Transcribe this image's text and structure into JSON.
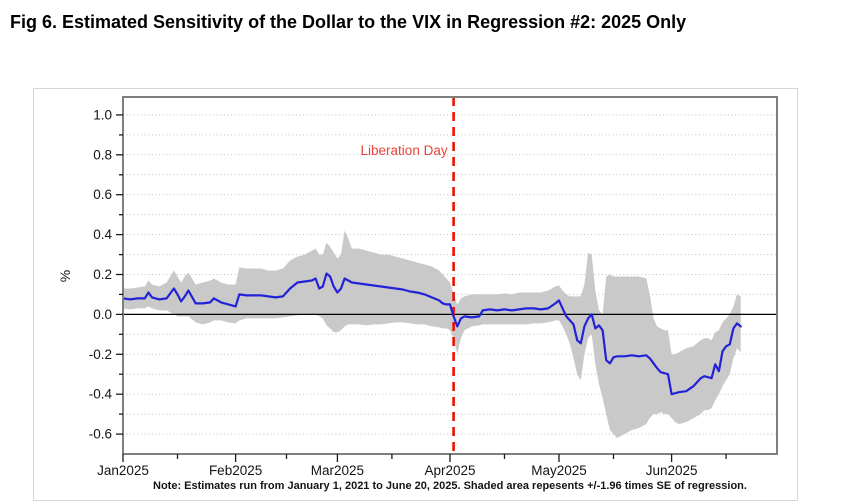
{
  "title": "Fig 6. Estimated Sensitivity of the Dollar to the VIX in Regression #2: 2025 Only",
  "note": "Note: Estimates run from January 1, 2021 to June 20, 2025. Shaded area repesents +/-1.96 times SE of regression.",
  "chart_data": {
    "type": "line",
    "title": "Fig 6. Estimated Sensitivity of the Dollar to the VIX in Regression #2: 2025 Only",
    "xlabel": "",
    "ylabel": "%",
    "x_domain": [
      "2025-01-01",
      "2025-06-30"
    ],
    "ylim": [
      -0.7,
      1.09
    ],
    "grid": {
      "from": -0.6,
      "to": 1.0,
      "step": 0.1
    },
    "y_ticks_major": [
      {
        "value": 1.0,
        "label": "1.0"
      },
      {
        "value": 0.8,
        "label": "0.8"
      },
      {
        "value": 0.6,
        "label": "0.6"
      },
      {
        "value": 0.4,
        "label": "0.4"
      },
      {
        "value": 0.2,
        "label": "0.2"
      },
      {
        "value": 0.0,
        "label": "0.0"
      },
      {
        "value": -0.2,
        "label": "-0.2"
      },
      {
        "value": -0.4,
        "label": "-0.4"
      },
      {
        "value": -0.6,
        "label": "-0.6"
      }
    ],
    "y_ticks_minor": [
      0.9,
      0.7,
      0.5,
      0.3,
      0.1,
      -0.1,
      -0.3,
      -0.5
    ],
    "x_ticks_major": [
      {
        "date": "2025-01-01",
        "label": "Jan2025"
      },
      {
        "date": "2025-02-01",
        "label": "Feb2025"
      },
      {
        "date": "2025-03-01",
        "label": "Mar2025"
      },
      {
        "date": "2025-04-01",
        "label": "Apr2025"
      },
      {
        "date": "2025-05-01",
        "label": "May2025"
      },
      {
        "date": "2025-06-01",
        "label": "Jun2025"
      }
    ],
    "x_ticks_minor": [
      "2025-01-16",
      "2025-02-15",
      "2025-03-16",
      "2025-04-16",
      "2025-05-16",
      "2025-06-16"
    ],
    "zero_line": 0.0,
    "annotation": {
      "label": "Liberation Day",
      "date": "2025-04-02",
      "line_color": "#ee1100",
      "text_color": "#e8423a"
    },
    "colors": {
      "estimate": "#2222d6",
      "band": "#c9c9c9",
      "grid": "#bfbfbf",
      "plot_border": "#7f7f7f",
      "axis_text": "#141414"
    },
    "legend": "none",
    "series_columns": [
      "date",
      "estimate",
      "lower",
      "upper"
    ],
    "series_rows": [
      [
        "2025-01-01",
        0.08,
        0.03,
        0.13
      ],
      [
        "2025-01-03",
        0.075,
        0.025,
        0.13
      ],
      [
        "2025-01-05",
        0.08,
        0.03,
        0.135
      ],
      [
        "2025-01-07",
        0.08,
        0.03,
        0.14
      ],
      [
        "2025-01-08",
        0.11,
        0.04,
        0.17
      ],
      [
        "2025-01-09",
        0.085,
        0.03,
        0.15
      ],
      [
        "2025-01-11",
        0.075,
        0.02,
        0.14
      ],
      [
        "2025-01-13",
        0.08,
        0.02,
        0.16
      ],
      [
        "2025-01-15",
        0.13,
        0.0,
        0.22
      ],
      [
        "2025-01-16",
        0.1,
        -0.01,
        0.19
      ],
      [
        "2025-01-17",
        0.065,
        -0.01,
        0.16
      ],
      [
        "2025-01-18",
        0.09,
        -0.01,
        0.19
      ],
      [
        "2025-01-19",
        0.12,
        -0.01,
        0.21
      ],
      [
        "2025-01-21",
        0.055,
        -0.04,
        0.15
      ],
      [
        "2025-01-23",
        0.055,
        -0.05,
        0.16
      ],
      [
        "2025-01-25",
        0.06,
        -0.04,
        0.17
      ],
      [
        "2025-01-26",
        0.08,
        -0.03,
        0.18
      ],
      [
        "2025-01-28",
        0.06,
        -0.03,
        0.16
      ],
      [
        "2025-01-30",
        0.05,
        -0.04,
        0.15
      ],
      [
        "2025-02-01",
        0.04,
        -0.045,
        0.15
      ],
      [
        "2025-02-02",
        0.1,
        -0.03,
        0.235
      ],
      [
        "2025-02-04",
        0.095,
        -0.02,
        0.23
      ],
      [
        "2025-02-06",
        0.095,
        -0.02,
        0.23
      ],
      [
        "2025-02-08",
        0.095,
        -0.02,
        0.23
      ],
      [
        "2025-02-10",
        0.09,
        -0.02,
        0.22
      ],
      [
        "2025-02-12",
        0.085,
        -0.02,
        0.22
      ],
      [
        "2025-02-14",
        0.09,
        -0.015,
        0.23
      ],
      [
        "2025-02-16",
        0.13,
        -0.01,
        0.27
      ],
      [
        "2025-02-18",
        0.16,
        -0.005,
        0.29
      ],
      [
        "2025-02-20",
        0.165,
        0.0,
        0.3
      ],
      [
        "2025-02-22",
        0.17,
        0.0,
        0.32
      ],
      [
        "2025-02-23",
        0.18,
        0.0,
        0.33
      ],
      [
        "2025-02-24",
        0.13,
        -0.01,
        0.3
      ],
      [
        "2025-02-25",
        0.14,
        -0.02,
        0.3
      ],
      [
        "2025-02-26",
        0.205,
        -0.055,
        0.36
      ],
      [
        "2025-02-27",
        0.19,
        -0.07,
        0.34
      ],
      [
        "2025-02-28",
        0.14,
        -0.09,
        0.31
      ],
      [
        "2025-03-01",
        0.11,
        -0.09,
        0.28
      ],
      [
        "2025-03-02",
        0.13,
        -0.08,
        0.3
      ],
      [
        "2025-03-03",
        0.18,
        -0.06,
        0.42
      ],
      [
        "2025-03-04",
        0.17,
        -0.05,
        0.38
      ],
      [
        "2025-03-05",
        0.16,
        -0.05,
        0.33
      ],
      [
        "2025-03-07",
        0.155,
        -0.05,
        0.33
      ],
      [
        "2025-03-09",
        0.15,
        -0.055,
        0.32
      ],
      [
        "2025-03-11",
        0.145,
        -0.05,
        0.31
      ],
      [
        "2025-03-13",
        0.14,
        -0.05,
        0.3
      ],
      [
        "2025-03-15",
        0.135,
        -0.045,
        0.3
      ],
      [
        "2025-03-17",
        0.13,
        -0.04,
        0.29
      ],
      [
        "2025-03-19",
        0.125,
        -0.04,
        0.28
      ],
      [
        "2025-03-21",
        0.115,
        -0.045,
        0.27
      ],
      [
        "2025-03-23",
        0.11,
        -0.05,
        0.26
      ],
      [
        "2025-03-25",
        0.1,
        -0.05,
        0.25
      ],
      [
        "2025-03-27",
        0.085,
        -0.06,
        0.24
      ],
      [
        "2025-03-29",
        0.07,
        -0.065,
        0.22
      ],
      [
        "2025-03-30",
        0.055,
        -0.07,
        0.2
      ],
      [
        "2025-03-31",
        0.05,
        -0.07,
        0.18
      ],
      [
        "2025-04-01",
        0.05,
        -0.08,
        0.16
      ],
      [
        "2025-04-02",
        -0.01,
        -0.12,
        0.1
      ],
      [
        "2025-04-03",
        -0.06,
        -0.2,
        0.05
      ],
      [
        "2025-04-04",
        -0.02,
        -0.12,
        0.08
      ],
      [
        "2025-04-05",
        -0.01,
        -0.08,
        0.09
      ],
      [
        "2025-04-07",
        -0.015,
        -0.06,
        0.1
      ],
      [
        "2025-04-09",
        -0.01,
        -0.055,
        0.1
      ],
      [
        "2025-04-10",
        0.02,
        -0.05,
        0.1
      ],
      [
        "2025-04-12",
        0.025,
        -0.05,
        0.1
      ],
      [
        "2025-04-14",
        0.02,
        -0.05,
        0.1
      ],
      [
        "2025-04-16",
        0.025,
        -0.05,
        0.105
      ],
      [
        "2025-04-18",
        0.02,
        -0.05,
        0.1
      ],
      [
        "2025-04-20",
        0.025,
        -0.05,
        0.11
      ],
      [
        "2025-04-22",
        0.03,
        -0.05,
        0.11
      ],
      [
        "2025-04-24",
        0.03,
        -0.045,
        0.11
      ],
      [
        "2025-04-26",
        0.025,
        -0.045,
        0.11
      ],
      [
        "2025-04-28",
        0.03,
        -0.04,
        0.12
      ],
      [
        "2025-04-30",
        0.055,
        -0.03,
        0.14
      ],
      [
        "2025-05-01",
        0.07,
        -0.03,
        0.145
      ],
      [
        "2025-05-02",
        0.03,
        -0.06,
        0.12
      ],
      [
        "2025-05-03",
        -0.01,
        -0.1,
        0.1
      ],
      [
        "2025-05-04",
        -0.03,
        -0.15,
        0.09
      ],
      [
        "2025-05-05",
        -0.05,
        -0.22,
        0.09
      ],
      [
        "2025-05-06",
        -0.13,
        -0.3,
        0.09
      ],
      [
        "2025-05-07",
        -0.145,
        -0.33,
        0.09
      ],
      [
        "2025-05-08",
        -0.06,
        -0.2,
        0.15
      ],
      [
        "2025-05-09",
        -0.02,
        -0.12,
        0.31
      ],
      [
        "2025-05-10",
        0.0,
        -0.1,
        0.3
      ],
      [
        "2025-05-11",
        -0.07,
        -0.25,
        0.12
      ],
      [
        "2025-05-12",
        -0.055,
        -0.35,
        0.02
      ],
      [
        "2025-05-13",
        -0.08,
        -0.42,
        0.0
      ],
      [
        "2025-05-14",
        -0.23,
        -0.5,
        0.19
      ],
      [
        "2025-05-15",
        -0.245,
        -0.58,
        0.2
      ],
      [
        "2025-05-16",
        -0.215,
        -0.6,
        0.19
      ],
      [
        "2025-05-17",
        -0.21,
        -0.62,
        0.19
      ],
      [
        "2025-05-19",
        -0.21,
        -0.6,
        0.19
      ],
      [
        "2025-05-21",
        -0.205,
        -0.58,
        0.19
      ],
      [
        "2025-05-23",
        -0.21,
        -0.57,
        0.19
      ],
      [
        "2025-05-25",
        -0.205,
        -0.55,
        0.18
      ],
      [
        "2025-05-26",
        -0.22,
        -0.52,
        0.1
      ],
      [
        "2025-05-27",
        -0.245,
        -0.5,
        -0.02
      ],
      [
        "2025-05-28",
        -0.27,
        -0.5,
        -0.06
      ],
      [
        "2025-05-29",
        -0.29,
        -0.49,
        -0.07
      ],
      [
        "2025-05-30",
        -0.295,
        -0.5,
        -0.08
      ],
      [
        "2025-05-31",
        -0.3,
        -0.5,
        -0.08
      ],
      [
        "2025-06-01",
        -0.4,
        -0.52,
        -0.2
      ],
      [
        "2025-06-02",
        -0.395,
        -0.54,
        -0.2
      ],
      [
        "2025-06-03",
        -0.39,
        -0.55,
        -0.19
      ],
      [
        "2025-06-05",
        -0.385,
        -0.54,
        -0.17
      ],
      [
        "2025-06-07",
        -0.36,
        -0.52,
        -0.16
      ],
      [
        "2025-06-09",
        -0.32,
        -0.5,
        -0.13
      ],
      [
        "2025-06-10",
        -0.31,
        -0.48,
        -0.12
      ],
      [
        "2025-06-11",
        -0.315,
        -0.48,
        -0.12
      ],
      [
        "2025-06-12",
        -0.32,
        -0.47,
        -0.13
      ],
      [
        "2025-06-13",
        -0.25,
        -0.43,
        -0.09
      ],
      [
        "2025-06-14",
        -0.285,
        -0.4,
        -0.08
      ],
      [
        "2025-06-15",
        -0.185,
        -0.36,
        -0.04
      ],
      [
        "2025-06-16",
        -0.16,
        -0.33,
        -0.02
      ],
      [
        "2025-06-17",
        -0.15,
        -0.3,
        0.0
      ],
      [
        "2025-06-18",
        -0.07,
        -0.22,
        0.04
      ],
      [
        "2025-06-19",
        -0.045,
        -0.17,
        0.1
      ],
      [
        "2025-06-20",
        -0.06,
        -0.19,
        0.09
      ]
    ]
  }
}
